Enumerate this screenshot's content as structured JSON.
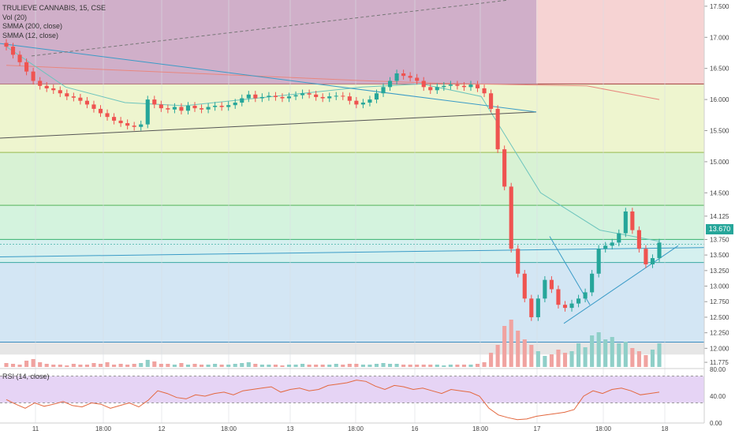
{
  "legend": {
    "title": "TRULIEVE CANNABIS, 15, CSE",
    "vol": "Vol (20)",
    "smma200": "SMMA (200, close)",
    "smma12": "SMMA (12, close)",
    "rsi": "RSI (14, close)"
  },
  "last_price": "13.670",
  "colors": {
    "up": "#26a69a",
    "down": "#ef5350",
    "smma200": "#e8877f",
    "smma12": "#6cc4bd",
    "trendline": "#3a9bc7",
    "rsi_line": "#e3683f",
    "rsi_band": "#e6d4f5"
  },
  "chart_data": [
    {
      "type": "candlestick",
      "title": "TRULIEVE CANNABIS, 15, CSE",
      "xlabel": "",
      "ylabel": "",
      "x_tick_labels": [
        "11",
        "18:00",
        "12",
        "18:00",
        "13",
        "18:00",
        "16",
        "18:00",
        "17",
        "18:00",
        "18"
      ],
      "y_tick_labels": [
        "17.500",
        "17.000",
        "16.500",
        "16.000",
        "15.500",
        "15.000",
        "14.500",
        "14.125",
        "13.750",
        "13.500",
        "13.250",
        "13.000",
        "12.750",
        "12.500",
        "12.250",
        "12.000",
        "11.775"
      ],
      "ylim": [
        11.7,
        17.6
      ],
      "fib_levels": [
        16.25,
        15.15,
        14.3,
        13.75,
        13.38,
        12.1
      ],
      "close_series": [
        16.85,
        16.72,
        16.6,
        16.45,
        16.3,
        16.22,
        16.18,
        16.15,
        16.1,
        16.05,
        16.03,
        15.98,
        15.92,
        15.85,
        15.78,
        15.72,
        15.66,
        15.62,
        15.58,
        15.56,
        15.6,
        16.0,
        15.92,
        15.86,
        15.84,
        15.88,
        15.82,
        15.9,
        15.86,
        15.84,
        15.88,
        15.9,
        15.88,
        15.91,
        15.95,
        16.02,
        16.08,
        16.02,
        16.04,
        16.06,
        16.04,
        16.02,
        16.05,
        16.07,
        16.1,
        16.08,
        16.04,
        16.02,
        16.05,
        16.06,
        16.05,
        15.98,
        15.92,
        15.95,
        16.0,
        16.1,
        16.2,
        16.3,
        16.42,
        16.38,
        16.35,
        16.3,
        16.2,
        16.15,
        16.2,
        16.22,
        16.24,
        16.22,
        16.2,
        16.24,
        16.18,
        16.1,
        15.85,
        15.2,
        14.6,
        13.6,
        13.2,
        12.8,
        12.5,
        12.8,
        13.1,
        12.95,
        12.7,
        12.65,
        12.72,
        12.8,
        12.9,
        13.2,
        13.6,
        13.65,
        13.7,
        13.85,
        14.2,
        13.9,
        13.6,
        13.35,
        13.45,
        13.7
      ],
      "volumes": [
        5,
        4,
        3,
        8,
        10,
        6,
        4,
        3,
        3,
        2,
        4,
        3,
        3,
        5,
        4,
        6,
        3,
        4,
        3,
        4,
        5,
        9,
        7,
        4,
        4,
        3,
        5,
        3,
        4,
        3,
        3,
        4,
        3,
        3,
        4,
        5,
        6,
        4,
        3,
        3,
        3,
        2,
        3,
        3,
        4,
        3,
        3,
        3,
        3,
        4,
        3,
        4,
        4,
        3,
        3,
        4,
        5,
        4,
        4,
        3,
        3,
        3,
        3,
        3,
        3,
        2,
        3,
        3,
        3,
        3,
        4,
        6,
        18,
        28,
        52,
        60,
        46,
        35,
        28,
        20,
        14,
        16,
        22,
        18,
        20,
        30,
        25,
        40,
        44,
        35,
        38,
        30,
        32,
        24,
        20,
        15,
        22,
        30
      ],
      "smma200": [
        16.55,
        16.5,
        16.45,
        16.4,
        16.35,
        16.3,
        16.26,
        16.24,
        16.22,
        16.0
      ],
      "smma12": [
        16.85,
        16.2,
        15.95,
        15.9,
        16.0,
        16.1,
        16.2,
        16.25,
        16.05,
        14.5,
        13.9,
        13.72
      ],
      "rsi_range": [
        0,
        80
      ],
      "rsi_tick_labels": [
        "80.00",
        "40.00",
        "0.00"
      ],
      "rsi_values": [
        35,
        28,
        22,
        30,
        25,
        28,
        32,
        26,
        24,
        30,
        28,
        22,
        26,
        30,
        24,
        34,
        48,
        44,
        38,
        36,
        42,
        40,
        44,
        46,
        42,
        48,
        50,
        52,
        54,
        46,
        50,
        52,
        48,
        50,
        56,
        58,
        60,
        64,
        62,
        55,
        50,
        56,
        54,
        50,
        52,
        48,
        44,
        50,
        48,
        46,
        40,
        22,
        12,
        8,
        5,
        6,
        10,
        12,
        14,
        16,
        20,
        40,
        48,
        44,
        50,
        52,
        48,
        42,
        44,
        46
      ]
    }
  ]
}
